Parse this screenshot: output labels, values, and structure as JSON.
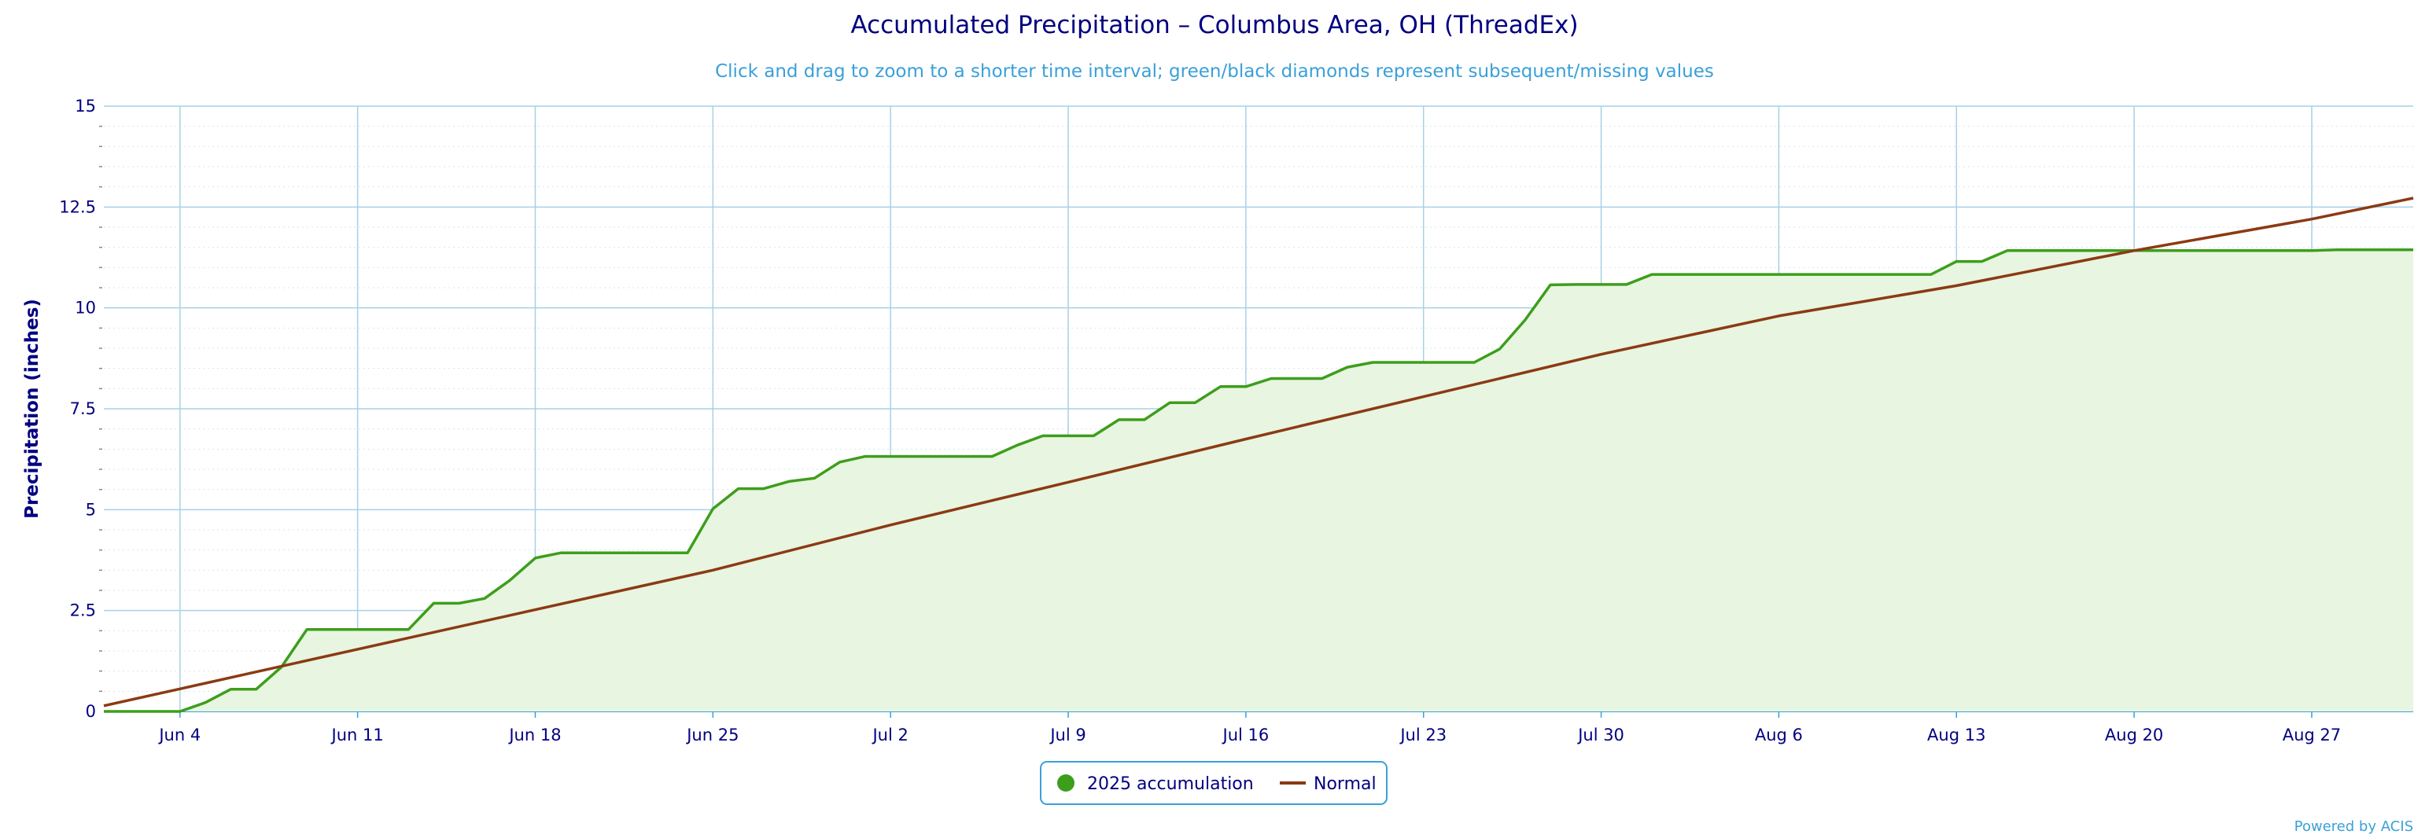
{
  "chart_data": {
    "type": "area",
    "title": "Accumulated Precipitation – Columbus Area, OH (ThreadEx)",
    "subtitle": "Click and drag to zoom to a shorter time interval; green/black diamonds represent subsequent/missing values",
    "xlabel": "",
    "ylabel": "Precipitation (inches)",
    "ylim": [
      0,
      15
    ],
    "xlim_days": [
      0,
      91
    ],
    "y_ticks": [
      "0",
      "2.5",
      "5",
      "7.5",
      "10",
      "12.5",
      "15"
    ],
    "x_ticks": [
      {
        "label": "Jun 4",
        "day": 3
      },
      {
        "label": "Jun 11",
        "day": 10
      },
      {
        "label": "Jun 18",
        "day": 17
      },
      {
        "label": "Jun 25",
        "day": 24
      },
      {
        "label": "Jul 2",
        "day": 31
      },
      {
        "label": "Jul 9",
        "day": 38
      },
      {
        "label": "Jul 16",
        "day": 45
      },
      {
        "label": "Jul 23",
        "day": 52
      },
      {
        "label": "Jul 30",
        "day": 59
      },
      {
        "label": "Aug 6",
        "day": 66
      },
      {
        "label": "Aug 13",
        "day": 73
      },
      {
        "label": "Aug 20",
        "day": 80
      },
      {
        "label": "Aug 27",
        "day": 87
      }
    ],
    "x_day_zero": "Jun 1",
    "series": [
      {
        "name": "2025 accumulation",
        "color": "#3d9e1c",
        "fill": "#e8f5e0",
        "points": [
          [
            0,
            0
          ],
          [
            1,
            0
          ],
          [
            2,
            0
          ],
          [
            3,
            0
          ],
          [
            4,
            0.22
          ],
          [
            5,
            0.55
          ],
          [
            6,
            0.55
          ],
          [
            7,
            1.1
          ],
          [
            8,
            2.03
          ],
          [
            9,
            2.03
          ],
          [
            10,
            2.03
          ],
          [
            11,
            2.03
          ],
          [
            12,
            2.03
          ],
          [
            13,
            2.68
          ],
          [
            14,
            2.68
          ],
          [
            15,
            2.8
          ],
          [
            16,
            3.25
          ],
          [
            17,
            3.8
          ],
          [
            18,
            3.93
          ],
          [
            19,
            3.93
          ],
          [
            20,
            3.93
          ],
          [
            21,
            3.93
          ],
          [
            22,
            3.93
          ],
          [
            23,
            3.93
          ],
          [
            24,
            5.02
          ],
          [
            25,
            5.52
          ],
          [
            26,
            5.52
          ],
          [
            27,
            5.7
          ],
          [
            28,
            5.78
          ],
          [
            29,
            6.18
          ],
          [
            30,
            6.32
          ],
          [
            31,
            6.32
          ],
          [
            32,
            6.32
          ],
          [
            33,
            6.32
          ],
          [
            34,
            6.32
          ],
          [
            35,
            6.32
          ],
          [
            36,
            6.6
          ],
          [
            37,
            6.83
          ],
          [
            38,
            6.83
          ],
          [
            39,
            6.83
          ],
          [
            40,
            7.23
          ],
          [
            41,
            7.23
          ],
          [
            42,
            7.65
          ],
          [
            43,
            7.65
          ],
          [
            44,
            8.05
          ],
          [
            45,
            8.05
          ],
          [
            46,
            8.25
          ],
          [
            47,
            8.25
          ],
          [
            48,
            8.25
          ],
          [
            49,
            8.53
          ],
          [
            50,
            8.65
          ],
          [
            51,
            8.65
          ],
          [
            52,
            8.65
          ],
          [
            53,
            8.65
          ],
          [
            54,
            8.65
          ],
          [
            55,
            8.98
          ],
          [
            56,
            9.7
          ],
          [
            57,
            10.57
          ],
          [
            58,
            10.58
          ],
          [
            59,
            10.58
          ],
          [
            60,
            10.58
          ],
          [
            61,
            10.83
          ],
          [
            62,
            10.83
          ],
          [
            63,
            10.83
          ],
          [
            64,
            10.83
          ],
          [
            65,
            10.83
          ],
          [
            66,
            10.83
          ],
          [
            67,
            10.83
          ],
          [
            68,
            10.83
          ],
          [
            69,
            10.83
          ],
          [
            70,
            10.83
          ],
          [
            71,
            10.83
          ],
          [
            72,
            10.83
          ],
          [
            73,
            11.15
          ],
          [
            74,
            11.15
          ],
          [
            75,
            11.42
          ],
          [
            76,
            11.42
          ],
          [
            77,
            11.42
          ],
          [
            78,
            11.42
          ],
          [
            79,
            11.42
          ],
          [
            80,
            11.42
          ],
          [
            81,
            11.42
          ],
          [
            82,
            11.42
          ],
          [
            83,
            11.42
          ],
          [
            84,
            11.42
          ],
          [
            85,
            11.42
          ],
          [
            86,
            11.42
          ],
          [
            87,
            11.42
          ],
          [
            88,
            11.44
          ],
          [
            89,
            11.44
          ],
          [
            90,
            11.44
          ],
          [
            91,
            11.44
          ]
        ]
      },
      {
        "name": "Normal",
        "color": "#8b3a14",
        "points": [
          [
            0,
            0.14
          ],
          [
            3,
            0.56
          ],
          [
            6,
            0.98
          ],
          [
            10,
            1.54
          ],
          [
            17,
            2.52
          ],
          [
            24,
            3.5
          ],
          [
            31,
            4.62
          ],
          [
            38,
            5.68
          ],
          [
            45,
            6.75
          ],
          [
            52,
            7.8
          ],
          [
            59,
            8.85
          ],
          [
            66,
            9.8
          ],
          [
            73,
            10.55
          ],
          [
            80,
            11.42
          ],
          [
            87,
            12.2
          ],
          [
            91,
            12.72
          ]
        ]
      }
    ]
  },
  "legend": {
    "accumulation_label": "2025 accumulation",
    "normal_label": "Normal"
  },
  "credit": "Powered by ACIS"
}
